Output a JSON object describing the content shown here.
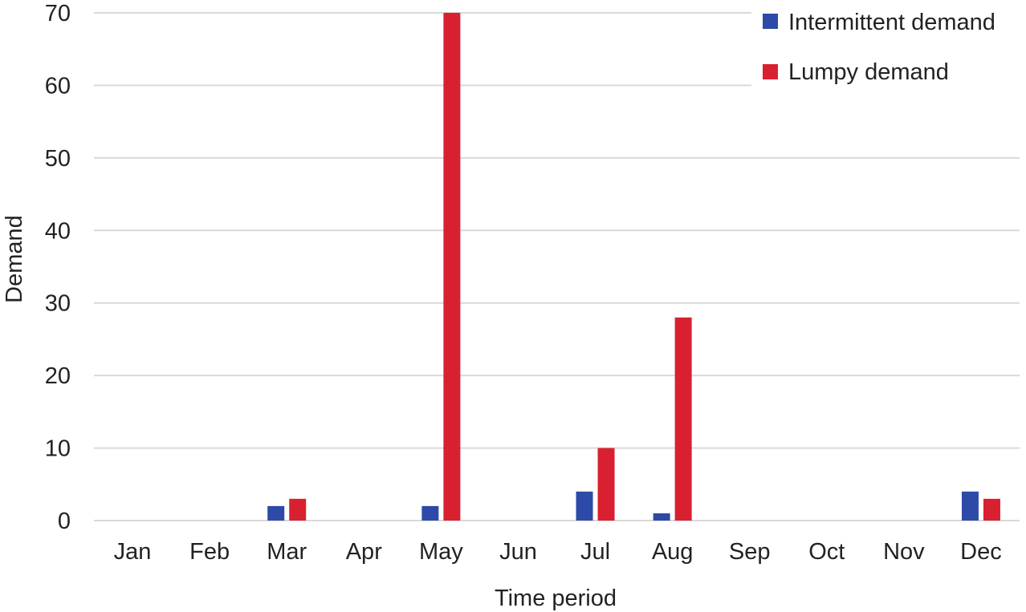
{
  "chart_data": {
    "type": "bar",
    "title": "",
    "xlabel": "Time period",
    "ylabel": "Demand",
    "ylim": [
      0,
      70
    ],
    "yticks": [
      "0",
      "10",
      "20",
      "30",
      "40",
      "50",
      "60",
      "70"
    ],
    "categories": [
      "Jan",
      "Feb",
      "Mar",
      "Apr",
      "May",
      "Jun",
      "Jul",
      "Aug",
      "Sep",
      "Oct",
      "Nov",
      "Dec"
    ],
    "series": [
      {
        "name": "Intermittent demand",
        "color": "#2e4aa8",
        "values": [
          0,
          0,
          2,
          0,
          2,
          0,
          4,
          1,
          0,
          0,
          0,
          4
        ]
      },
      {
        "name": "Lumpy demand",
        "color": "#d92030",
        "values": [
          0,
          0,
          3,
          0,
          70,
          0,
          10,
          28,
          0,
          0,
          0,
          3
        ]
      }
    ],
    "grid": true,
    "legend_position": "top-right"
  }
}
